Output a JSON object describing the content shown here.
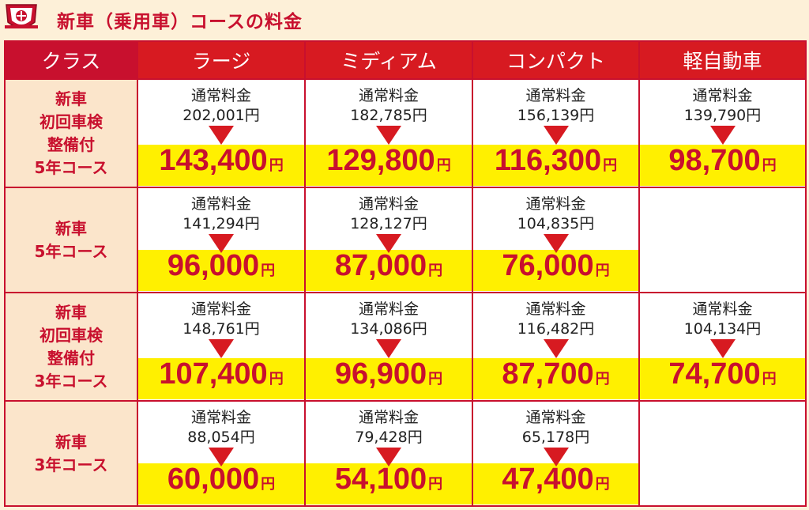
{
  "title": "新車（乗用車）コースの料金",
  "colors": {
    "accent": "#c8102e",
    "highlight": "#fff000",
    "label_bg": "#fbe5cb"
  },
  "table": {
    "headers": [
      "クラス",
      "ラージ",
      "ミディアム",
      "コンパクト",
      "軽自動車"
    ],
    "normal_label": "通常料金",
    "yen": "円",
    "rows": [
      {
        "label": "新車\n初回車検\n整備付\n5年コース",
        "cells": [
          {
            "normal": "202,001円",
            "sale": "143,400"
          },
          {
            "normal": "182,785円",
            "sale": "129,800"
          },
          {
            "normal": "156,139円",
            "sale": "116,300"
          },
          {
            "normal": "139,790円",
            "sale": "98,700"
          }
        ]
      },
      {
        "label": "新車\n5年コース",
        "cells": [
          {
            "normal": "141,294円",
            "sale": "96,000"
          },
          {
            "normal": "128,127円",
            "sale": "87,000"
          },
          {
            "normal": "104,835円",
            "sale": "76,000"
          },
          null
        ]
      },
      {
        "label": "新車\n初回車検\n整備付\n3年コース",
        "cells": [
          {
            "normal": "148,761円",
            "sale": "107,400"
          },
          {
            "normal": "134,086円",
            "sale": "96,900"
          },
          {
            "normal": "116,482円",
            "sale": "87,700"
          },
          {
            "normal": "104,134円",
            "sale": "74,700"
          }
        ]
      },
      {
        "label": "新車\n3年コース",
        "cells": [
          {
            "normal": "88,054円",
            "sale": "60,000"
          },
          {
            "normal": "79,428円",
            "sale": "54,100"
          },
          {
            "normal": "65,178円",
            "sale": "47,400"
          },
          null
        ]
      }
    ]
  }
}
